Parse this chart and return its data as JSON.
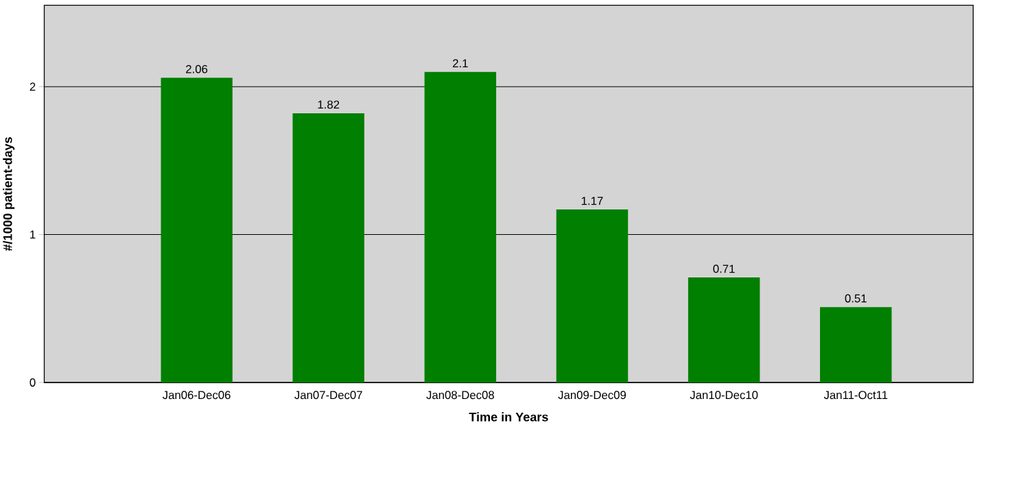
{
  "chart_data": {
    "type": "bar",
    "xlabel": "Time in Years",
    "ylabel": "#/1000 patient-days",
    "categories": [
      "Jan06-Dec06",
      "Jan07-Dec07",
      "Jan08-Dec08",
      "Jan09-Dec09",
      "Jan10-Dec10",
      "Jan11-Oct11"
    ],
    "values": [
      2.06,
      1.82,
      2.1,
      1.17,
      0.71,
      0.51
    ],
    "color": "#007f00",
    "ylim": [
      0,
      2.55
    ],
    "yticks": [
      0,
      1,
      2
    ],
    "grid": "y",
    "data_labels": true
  }
}
